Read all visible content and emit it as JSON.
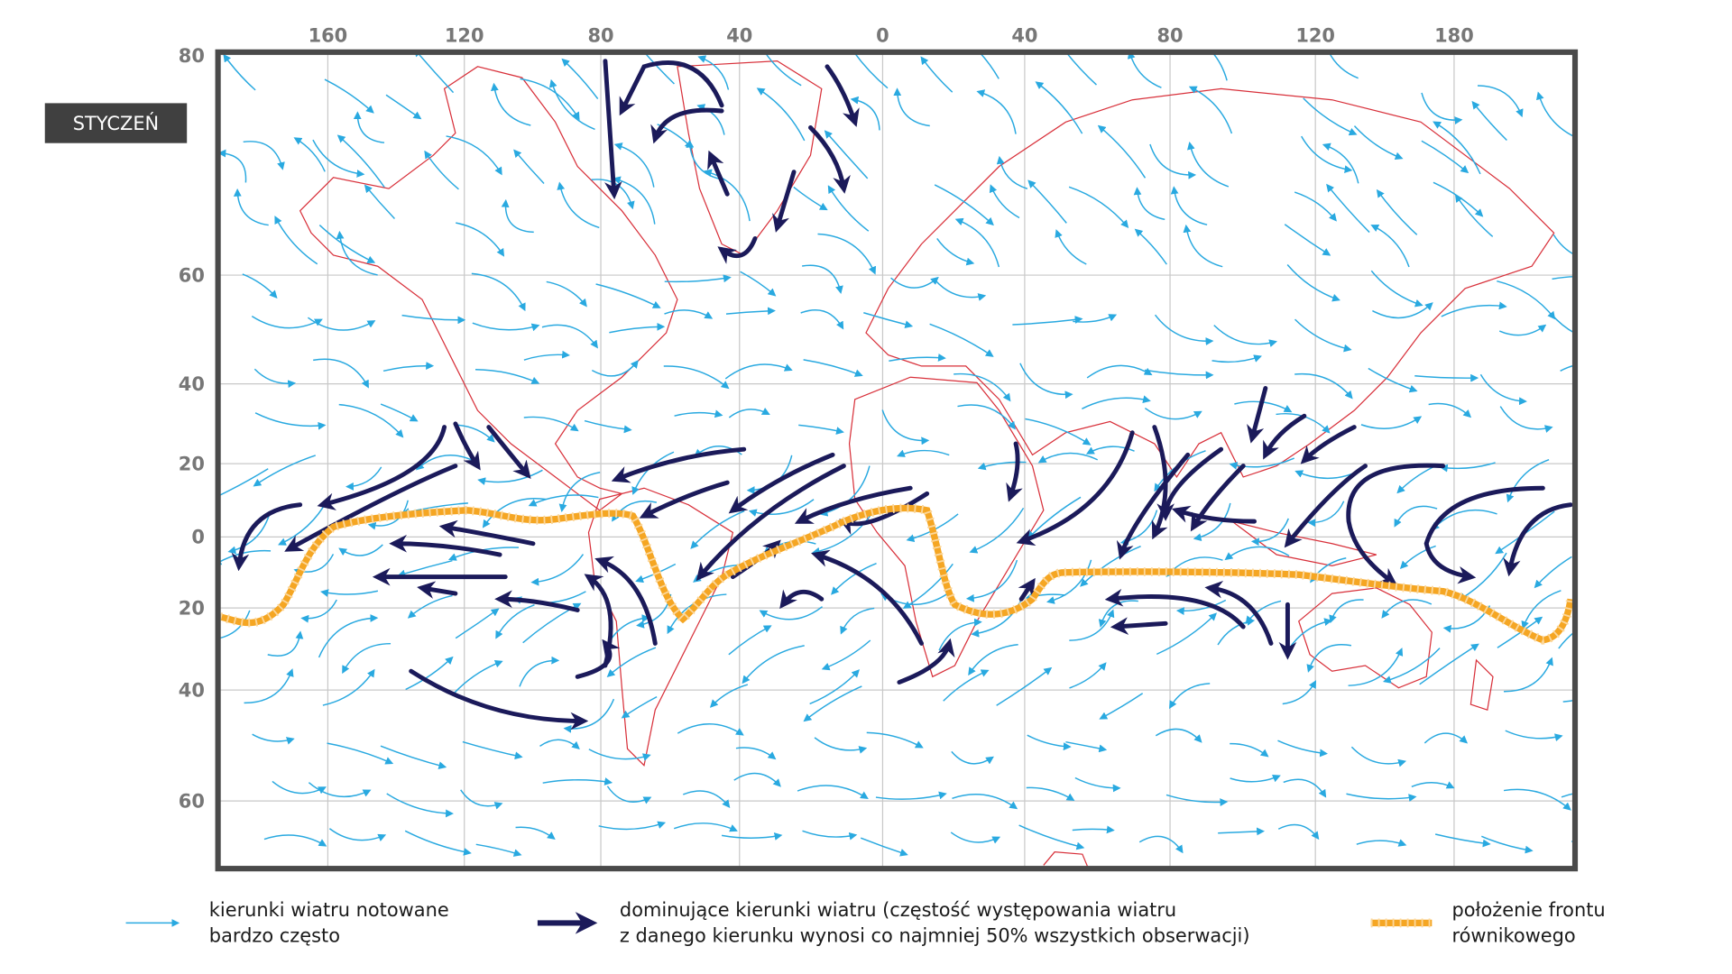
{
  "title": "STYCZEŃ",
  "map": {
    "lon_labels": [
      "160",
      "120",
      "80",
      "40",
      "0",
      "40",
      "80",
      "120",
      "180"
    ],
    "lat_labels": [
      "80",
      "60",
      "40",
      "20",
      "0",
      "20",
      "40",
      "60"
    ]
  },
  "legend": [
    {
      "lines": [
        "kierunki wiatru notowane",
        "bardzo często"
      ]
    },
    {
      "lines": [
        "dominujące kierunki wiatru (częstość występowania wiatru",
        "z danego kierunku wynosi co najmniej 50% wszystkich obserwacji)"
      ]
    },
    {
      "lines": [
        "położenie frontu",
        "równikowego"
      ]
    }
  ]
}
